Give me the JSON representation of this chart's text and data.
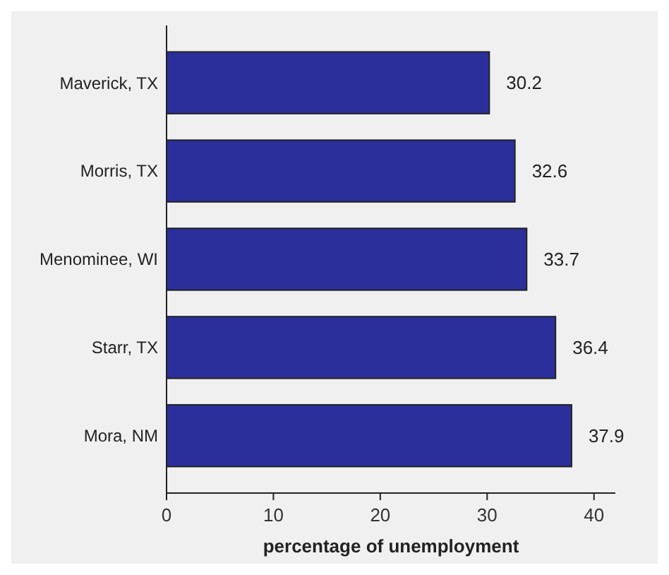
{
  "chart_data": {
    "type": "bar",
    "orientation": "horizontal",
    "categories": [
      "Maverick, TX",
      "Morris, TX",
      "Menominee, WI",
      "Starr, TX",
      "Mora, NM"
    ],
    "values": [
      30.2,
      32.6,
      33.7,
      36.4,
      37.9
    ],
    "color": "#2b2f9c",
    "data_labels": true,
    "xlim": [
      0,
      42
    ],
    "xticks": [
      0,
      10,
      20,
      30,
      40
    ],
    "xlabel": "percentage of unemployment"
  }
}
